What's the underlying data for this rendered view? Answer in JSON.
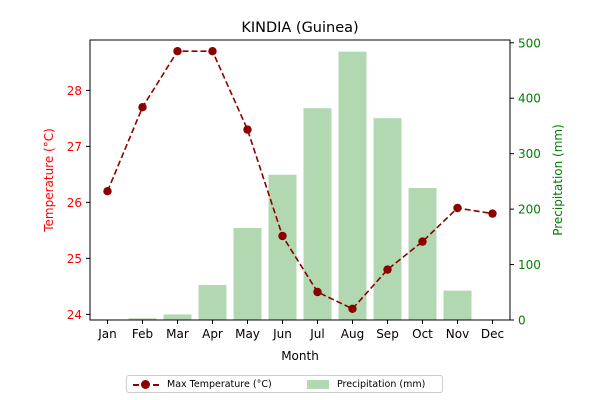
{
  "chart_data": {
    "type": "bar+line",
    "title": "KINDIA (Guinea)",
    "xlabel": "Month",
    "categories": [
      "Jan",
      "Feb",
      "Mar",
      "Apr",
      "May",
      "Jun",
      "Jul",
      "Aug",
      "Sep",
      "Oct",
      "Nov",
      "Dec"
    ],
    "left_axis": {
      "label": "Temperature (°C)",
      "ylim": [
        23.9,
        28.9
      ],
      "ticks": [
        24,
        25,
        26,
        27,
        28
      ],
      "color": "#ff0000"
    },
    "right_axis": {
      "label": "Precipitation (mm)",
      "ylim": [
        0,
        505
      ],
      "ticks": [
        0,
        100,
        200,
        300,
        400,
        500
      ],
      "color": "#008000"
    },
    "series": [
      {
        "name": "Max Temperature (°C)",
        "type": "line",
        "axis": "left",
        "color": "#8b0000",
        "style": "dashed",
        "marker": "circle",
        "values": [
          26.2,
          27.7,
          28.7,
          28.7,
          27.3,
          25.4,
          24.4,
          24.1,
          24.8,
          25.3,
          25.9,
          25.8
        ]
      },
      {
        "name": "Precipitation (mm)",
        "type": "bar",
        "axis": "right",
        "color": "#b2d8b2",
        "values": [
          1,
          3,
          10,
          63,
          166,
          262,
          382,
          484,
          364,
          238,
          53,
          1
        ]
      }
    ],
    "grid": false,
    "legend_position": "bottom-center"
  }
}
